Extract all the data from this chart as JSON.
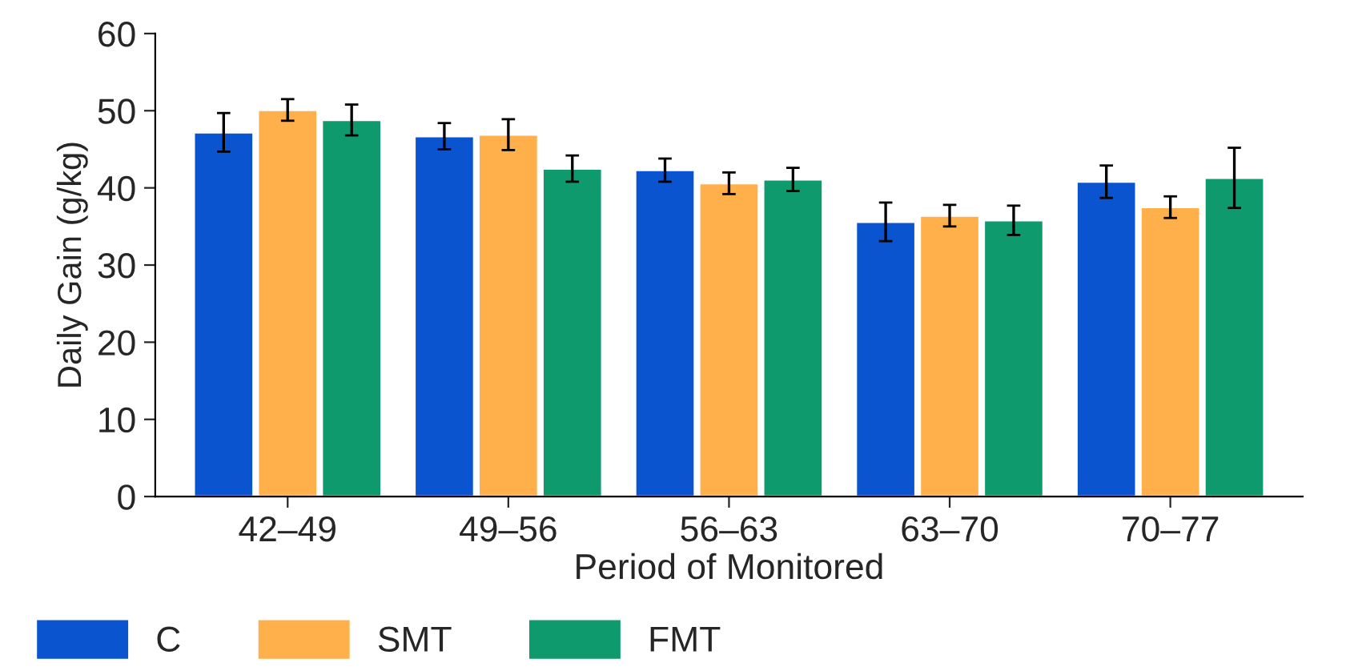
{
  "chart_data": {
    "type": "bar",
    "xlabel": "Period of Monitored",
    "ylabel": "Daily Gain (g/kg)",
    "categories": [
      "42–49",
      "49–56",
      "56–63",
      "63–70",
      "70–77"
    ],
    "series": [
      {
        "name": "C",
        "color": "#0a55cf",
        "values": [
          47.2,
          46.7,
          42.3,
          35.6,
          40.8
        ],
        "errors": [
          2.5,
          1.7,
          1.5,
          2.5,
          2.1
        ]
      },
      {
        "name": "SMT",
        "color": "#ffb04a",
        "values": [
          50.1,
          46.9,
          40.6,
          36.4,
          37.5
        ],
        "errors": [
          1.4,
          2.0,
          1.4,
          1.4,
          1.4
        ]
      },
      {
        "name": "FMT",
        "color": "#0f9a6e",
        "values": [
          48.8,
          42.5,
          41.1,
          35.8,
          41.3
        ],
        "errors": [
          2.0,
          1.7,
          1.5,
          1.9,
          3.9
        ]
      }
    ],
    "ylim": [
      0,
      60
    ],
    "yticks": [
      0,
      10,
      20,
      30,
      40,
      50,
      60
    ],
    "grid": false,
    "legend": "bottom left"
  }
}
